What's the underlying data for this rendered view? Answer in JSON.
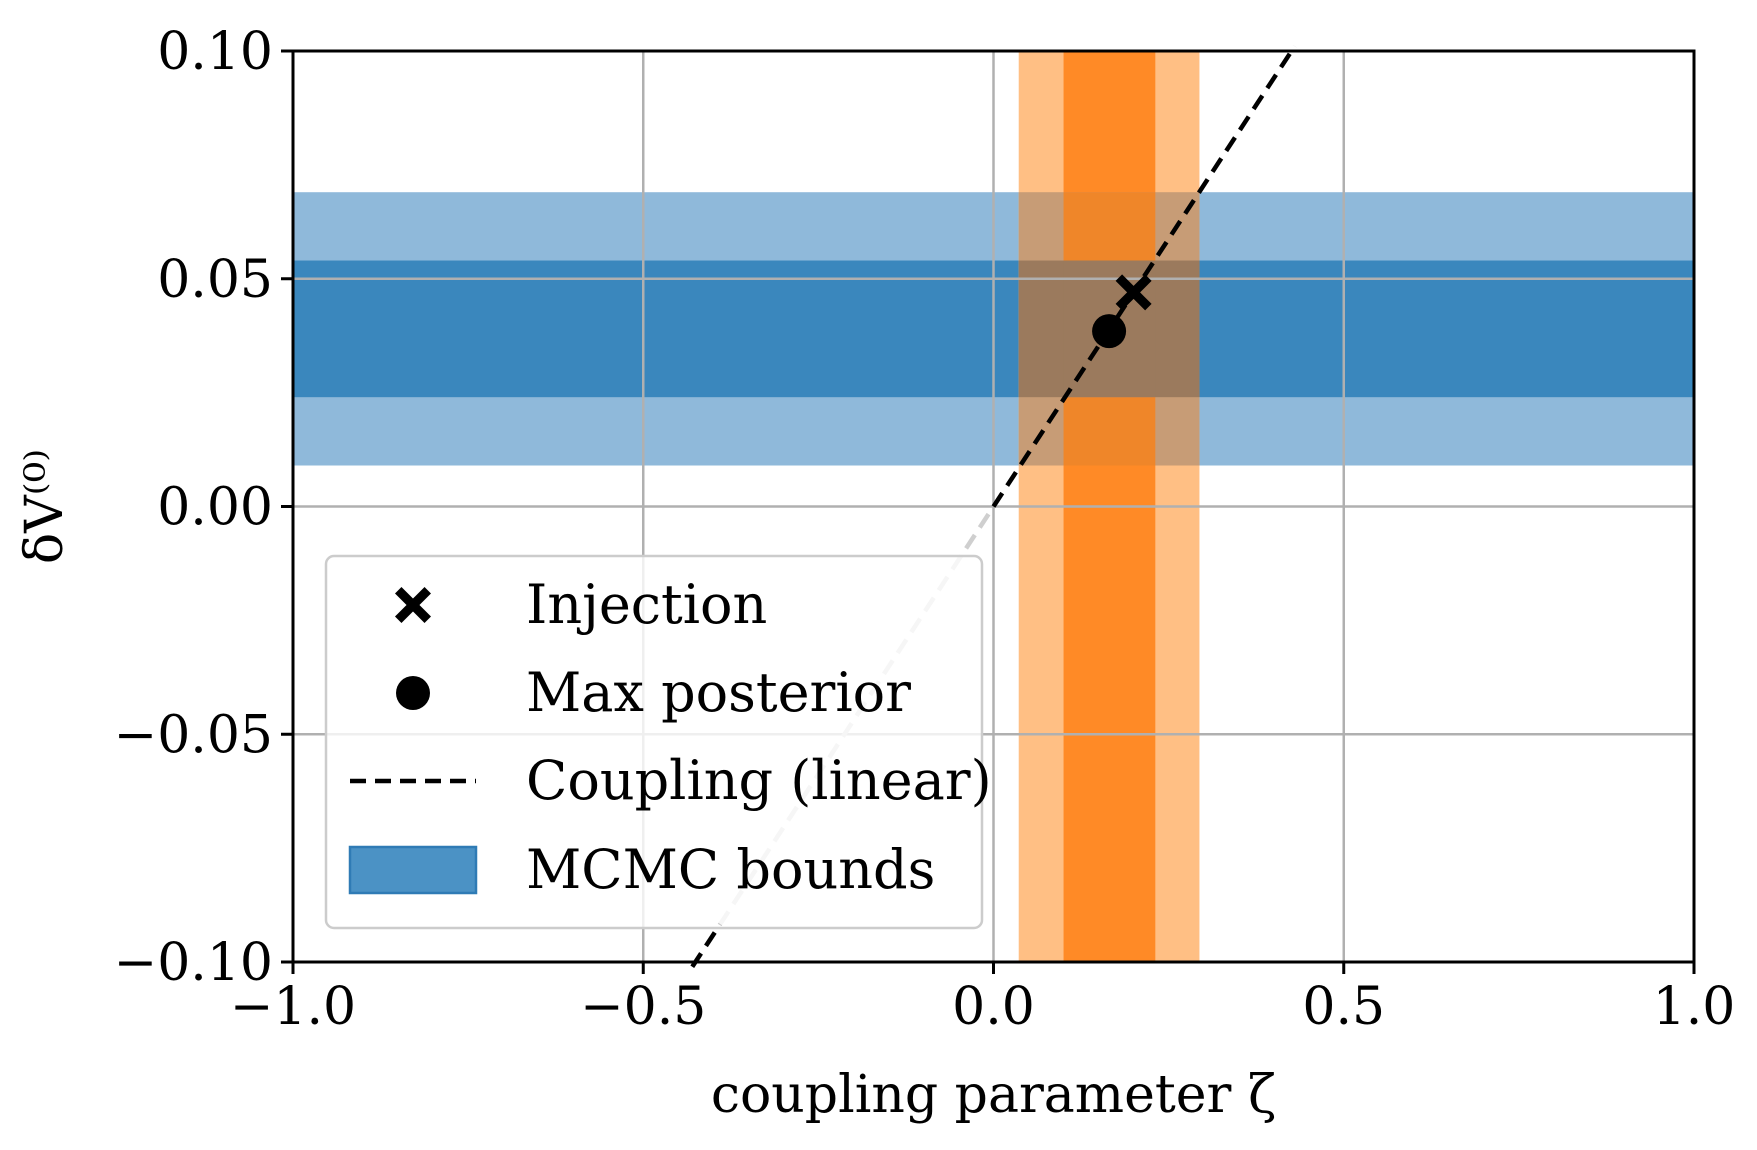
{
  "chart_data": {
    "type": "scatter",
    "xlabel": "coupling parameter ζ",
    "ylabel": "δV⁽⁰⁾",
    "xlim": [
      -1.0,
      1.0
    ],
    "ylim": [
      -0.1,
      0.1
    ],
    "grid": true,
    "legend_position": "lower-left",
    "x_ticks": [
      -1.0,
      -0.5,
      0.0,
      0.5,
      1.0
    ],
    "x_tick_labels": [
      "−1.0",
      "−0.5",
      "0.0",
      "0.5",
      "1.0"
    ],
    "y_ticks": [
      -0.1,
      -0.05,
      0.0,
      0.05,
      0.1
    ],
    "y_tick_labels": [
      "−0.10",
      "−0.05",
      "0.00",
      "0.05",
      "0.10"
    ],
    "legend": [
      {
        "label": "Injection",
        "marker": "x-filled"
      },
      {
        "label": "Max posterior",
        "marker": "circle"
      },
      {
        "label": "Coupling (linear)",
        "marker": "dashed-line"
      },
      {
        "label": "MCMC bounds",
        "marker": "patch"
      }
    ],
    "injection": {
      "x": 0.2,
      "y": 0.047
    },
    "max_posterior": {
      "x": 0.165,
      "y": 0.0385
    },
    "coupling_line": {
      "slope": 0.235,
      "intercept": 0.0,
      "x_range": [
        -0.43,
        0.43
      ],
      "faded_below_y": 0.0
    },
    "bands_y": {
      "outer": [
        0.009,
        0.069
      ],
      "inner": [
        0.024,
        0.054
      ]
    },
    "bands_x": {
      "outer": [
        0.036,
        0.294
      ],
      "inner": [
        0.1,
        0.231
      ]
    },
    "colors": {
      "blue_outer": "#8fb9da",
      "blue_inner": "#3a87bd",
      "orange_outer": "#ffbf84",
      "orange_inner": "#ff8a26",
      "overlap_outer": "#c79c76",
      "overlap_inner": "#9b7a5d",
      "overlap_mixed": "#ef8629",
      "line_dark": "#000000",
      "line_faded": "#cfcfcf",
      "legend_patch": "#4b92c5"
    }
  }
}
